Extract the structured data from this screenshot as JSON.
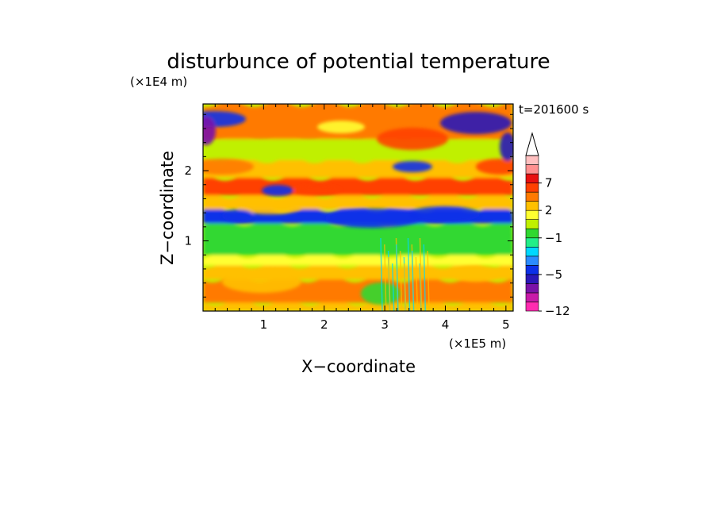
{
  "chart_data": {
    "type": "heatmap",
    "title": "disturbunce of potential temperature",
    "time_label": "t=201600 s",
    "xlabel": "X−coordinate",
    "ylabel": "Z−coordinate",
    "x_unit": "(×1E5 m)",
    "y_unit": "(×1E4 m)",
    "xlim": [
      0,
      5.12
    ],
    "ylim": [
      0,
      2.95
    ],
    "x_ticks": [
      1,
      2,
      3,
      4,
      5
    ],
    "x_tick_labels": [
      "1",
      "2",
      "3",
      "4",
      "5"
    ],
    "y_ticks": [
      1,
      2
    ],
    "y_tick_labels": [
      "1",
      "2"
    ],
    "colorbar": {
      "levels": [
        -12,
        -10,
        -8,
        -6,
        -5,
        -4,
        -3,
        -2,
        -1,
        0,
        1,
        2,
        3,
        5,
        7,
        9,
        11
      ],
      "colors": [
        "#ff2bb0",
        "#c81aa8",
        "#7a12a8",
        "#2a18b8",
        "#0c30e8",
        "#2b8bff",
        "#00d8ff",
        "#22ee88",
        "#30d830",
        "#c0f000",
        "#ffff30",
        "#ffc000",
        "#ff7a00",
        "#ff4000",
        "#e81010",
        "#ff9090",
        "#ffc0c0"
      ],
      "extend": "max",
      "labeled_levels": [
        "7",
        "2",
        "−1",
        "−5",
        "−12"
      ]
    },
    "field_bands": [
      {
        "z": [
          0.0,
          0.12
        ],
        "level": 2
      },
      {
        "z": [
          0.12,
          0.45
        ],
        "level": 3
      },
      {
        "z": [
          0.45,
          0.65
        ],
        "level": 2
      },
      {
        "z": [
          0.65,
          0.8
        ],
        "level": 1
      },
      {
        "z": [
          0.8,
          1.25
        ],
        "level": -1
      },
      {
        "z": [
          1.25,
          1.45
        ],
        "level": -5
      },
      {
        "z": [
          1.45,
          1.65
        ],
        "level": 2
      },
      {
        "z": [
          1.65,
          1.9
        ],
        "level": 5
      },
      {
        "z": [
          1.9,
          2.15
        ],
        "level": 2
      },
      {
        "z": [
          2.15,
          2.45
        ],
        "level": 0
      },
      {
        "z": [
          2.45,
          2.95
        ],
        "level": 3
      }
    ]
  }
}
